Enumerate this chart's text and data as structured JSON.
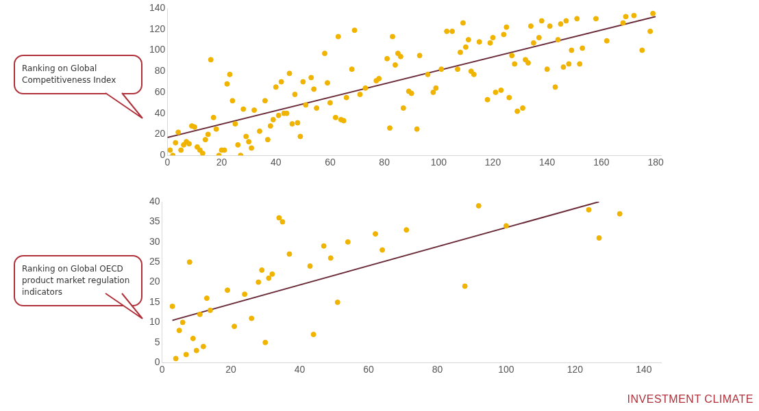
{
  "chart_data": [
    {
      "type": "scatter",
      "ylabel": "Ranking on Global Competitiveness Index",
      "marker": "circle",
      "xlim": [
        0,
        182
      ],
      "xticks": [
        0,
        20,
        40,
        60,
        80,
        100,
        120,
        140,
        160,
        180
      ],
      "ylim": [
        0,
        140
      ],
      "yticks": [
        0,
        20,
        40,
        60,
        80,
        100,
        120,
        140
      ],
      "grid": false,
      "series": [
        {
          "color": "#f0b400",
          "x": [
            1,
            2,
            3,
            4,
            5,
            6,
            7,
            8,
            9,
            10,
            11,
            12,
            13,
            14,
            15,
            16,
            17,
            18,
            19,
            20,
            21,
            22,
            23,
            24,
            25,
            26,
            27,
            28,
            29,
            30,
            31,
            32,
            34,
            36,
            37,
            38,
            39,
            40,
            41,
            42,
            43,
            44,
            45,
            46,
            47,
            48,
            49,
            50,
            51,
            53,
            54,
            55,
            58,
            59,
            60,
            62,
            63,
            64,
            65,
            66,
            68,
            69,
            71,
            73,
            77,
            78,
            81,
            82,
            83,
            84,
            85,
            86,
            87,
            89,
            90,
            92,
            93,
            96,
            98,
            99,
            101,
            103,
            105,
            107,
            108,
            109,
            110,
            111,
            112,
            113,
            115,
            118,
            119,
            120,
            121,
            123,
            124,
            125,
            126,
            127,
            128,
            129,
            131,
            132,
            133,
            134,
            135,
            137,
            138,
            140,
            141,
            143,
            144,
            145,
            146,
            147,
            148,
            149,
            151,
            152,
            153,
            158,
            162,
            168,
            169,
            172,
            175,
            178,
            179
          ],
          "values": [
            5,
            0,
            12,
            22,
            5,
            10,
            13,
            11,
            28,
            27,
            8,
            5,
            2,
            15,
            20,
            91,
            36,
            25,
            0,
            5,
            5,
            68,
            77,
            52,
            30,
            10,
            0,
            44,
            18,
            13,
            7,
            43,
            23,
            52,
            15,
            28,
            34,
            65,
            38,
            70,
            40,
            40,
            78,
            30,
            58,
            31,
            18,
            70,
            48,
            74,
            63,
            45,
            97,
            69,
            50,
            36,
            113,
            34,
            33,
            55,
            82,
            119,
            58,
            64,
            71,
            73,
            92,
            26,
            113,
            86,
            97,
            94,
            45,
            61,
            59,
            25,
            95,
            77,
            60,
            64,
            82,
            118,
            118,
            82,
            98,
            126,
            103,
            110,
            80,
            77,
            108,
            53,
            107,
            112,
            60,
            62,
            115,
            122,
            55,
            95,
            87,
            42,
            45,
            91,
            88,
            123,
            107,
            112,
            128,
            82,
            123,
            65,
            110,
            125,
            84,
            128,
            87,
            100,
            130,
            87,
            102,
            130,
            109,
            126,
            132,
            133,
            100,
            118,
            135
          ]
        },
        {
          "type": "line",
          "color": "#6b2c3a",
          "marker": "none",
          "x": [
            0,
            180
          ],
          "values": [
            17,
            132
          ]
        }
      ]
    },
    {
      "type": "scatter",
      "ylabel": "Ranking on Global OECD product market regulation indicators",
      "marker": "circle",
      "xlim": [
        0,
        145
      ],
      "xticks": [
        0,
        20,
        40,
        60,
        80,
        100,
        120,
        140
      ],
      "ylim": [
        0,
        40
      ],
      "yticks": [
        0,
        5,
        10,
        15,
        20,
        25,
        30,
        35,
        40
      ],
      "grid": false,
      "annotations": [
        "INVESTMENT CLIMATE"
      ],
      "series": [
        {
          "color": "#f0b400",
          "x": [
            3,
            4,
            5,
            6,
            7,
            8,
            9,
            10,
            11,
            12,
            13,
            14,
            19,
            21,
            24,
            26,
            28,
            29,
            30,
            31,
            32,
            34,
            35,
            37,
            43,
            44,
            47,
            49,
            51,
            54,
            62,
            64,
            71,
            88,
            92,
            100,
            124,
            127,
            133
          ],
          "values": [
            14,
            1,
            8,
            10,
            2,
            25,
            6,
            3,
            12,
            4,
            16,
            13,
            18,
            9,
            17,
            11,
            20,
            23,
            5,
            21,
            22,
            36,
            35,
            27,
            24,
            7,
            29,
            26,
            15,
            30,
            32,
            28,
            33,
            19,
            39,
            34,
            38,
            31,
            37
          ]
        },
        {
          "type": "line",
          "color": "#6b2c3a",
          "marker": "none",
          "x": [
            3,
            127
          ],
          "values": [
            10.5,
            40
          ]
        }
      ]
    }
  ]
}
